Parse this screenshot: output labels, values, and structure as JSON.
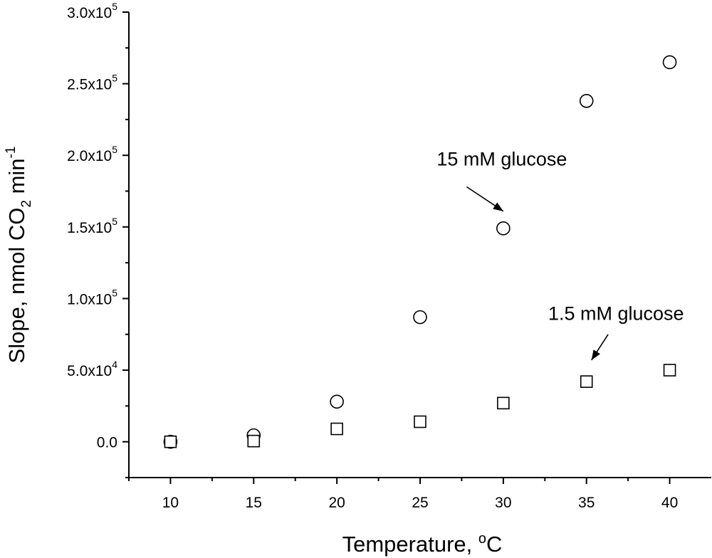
{
  "chart_data": {
    "type": "scatter",
    "title": "",
    "xlabel": "Temperature, ",
    "xlabel_sup": "o",
    "xlabel_tail": "C",
    "ylabel_parts": {
      "a": "Slope, nmol CO",
      "sub": "2",
      "b": " min",
      "sup": "-1"
    },
    "xlim": [
      7.5,
      42.5
    ],
    "ylim": [
      -25000,
      300000
    ],
    "x_ticks": [
      10,
      15,
      20,
      25,
      30,
      35,
      40
    ],
    "y_ticks": [
      {
        "value": 0,
        "mant": "0.0",
        "exp": ""
      },
      {
        "value": 50000,
        "mant": "5.0x10",
        "exp": "4"
      },
      {
        "value": 100000,
        "mant": "1.0x10",
        "exp": "5"
      },
      {
        "value": 150000,
        "mant": "1.5x10",
        "exp": "5"
      },
      {
        "value": 200000,
        "mant": "2.0x10",
        "exp": "5"
      },
      {
        "value": 250000,
        "mant": "2.5x10",
        "exp": "5"
      },
      {
        "value": 300000,
        "mant": "3.0x10",
        "exp": "5"
      }
    ],
    "grid": false,
    "series": [
      {
        "marker": "circle",
        "x": [
          10,
          15,
          20,
          25,
          30,
          35,
          40
        ],
        "y": [
          0,
          4500,
          28000,
          87000,
          149000,
          238000,
          265000
        ]
      },
      {
        "marker": "square",
        "x": [
          10,
          15,
          20,
          25,
          30,
          35,
          40
        ],
        "y": [
          0,
          500,
          9000,
          14000,
          27000,
          42000,
          50000
        ]
      }
    ],
    "annotations": [
      {
        "text": "15 mM glucose",
        "text_at": [
          26.0,
          193000
        ],
        "from": [
          27.8,
          178000
        ],
        "to": [
          30.0,
          161000
        ]
      },
      {
        "text": "1.5 mM glucose",
        "text_at": [
          32.7,
          85000
        ],
        "from": [
          36.3,
          75000
        ],
        "to": [
          35.3,
          57000
        ]
      }
    ]
  }
}
